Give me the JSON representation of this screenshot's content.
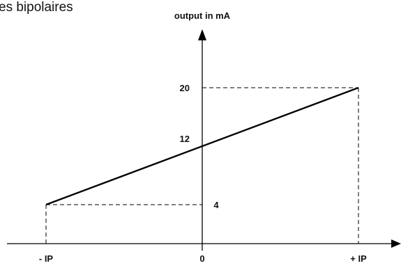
{
  "caption": "es bipolaires",
  "y_axis_label": "output in mA",
  "x_ticks": {
    "neg": "- IP",
    "zero": "0",
    "pos": "+ IP"
  },
  "y_ticks": {
    "low": "4",
    "mid": "12",
    "high": "20"
  },
  "chart_data": {
    "type": "line",
    "title": "",
    "xlabel": "",
    "ylabel": "output in mA",
    "x": [
      -1,
      0,
      1
    ],
    "x_tick_labels": [
      "- IP",
      "0",
      "+ IP"
    ],
    "series": [
      {
        "values": [
          4,
          12,
          20
        ]
      }
    ],
    "y_tick_labels": [
      "4",
      "12",
      "20"
    ],
    "grid": false
  }
}
